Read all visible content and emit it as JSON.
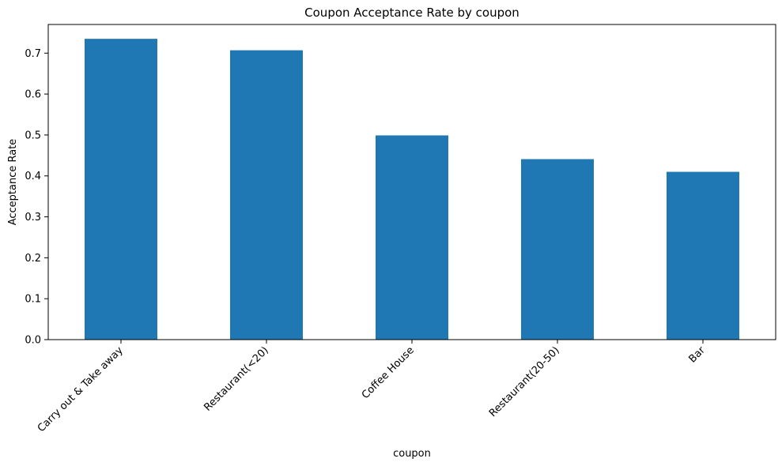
{
  "chart_data": {
    "type": "bar",
    "title": "Coupon Acceptance Rate by coupon",
    "xlabel": "coupon",
    "ylabel": "Acceptance Rate",
    "categories": [
      "Carry out & Take away",
      "Restaurant(<20)",
      "Coffee House",
      "Restaurant(20-50)",
      "Bar"
    ],
    "values": [
      0.735,
      0.707,
      0.499,
      0.441,
      0.41
    ],
    "ylim": [
      0,
      0.77
    ],
    "yticks": [
      0.0,
      0.1,
      0.2,
      0.3,
      0.4,
      0.5,
      0.6,
      0.7
    ],
    "ytick_labels": [
      "0.0",
      "0.1",
      "0.2",
      "0.3",
      "0.4",
      "0.5",
      "0.6",
      "0.7"
    ],
    "grid": false,
    "legend": "none",
    "bar_color": "#1f77b4"
  }
}
